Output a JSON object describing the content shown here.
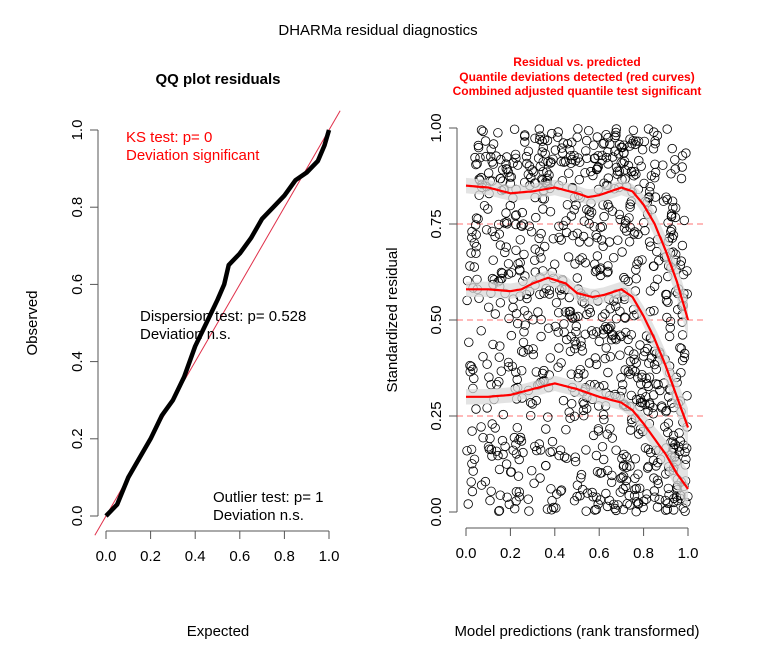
{
  "main_title": "DHARMa residual diagnostics",
  "chart_data": [
    {
      "type": "line",
      "title": "QQ plot residuals",
      "xlabel": "Expected",
      "ylabel": "Observed",
      "xlim": [
        0,
        1
      ],
      "ylim": [
        0,
        1
      ],
      "xticks": [
        "0.0",
        "0.2",
        "0.4",
        "0.6",
        "0.8",
        "1.0"
      ],
      "yticks": [
        "0.0",
        "0.2",
        "0.4",
        "0.6",
        "0.8",
        "1.0"
      ],
      "series": [
        {
          "name": "residual quantiles",
          "color": "#000000",
          "x": [
            0,
            0.05,
            0.1,
            0.15,
            0.2,
            0.25,
            0.3,
            0.35,
            0.4,
            0.45,
            0.5,
            0.53,
            0.55,
            0.6,
            0.65,
            0.7,
            0.75,
            0.8,
            0.85,
            0.9,
            0.95,
            0.98,
            1
          ],
          "y": [
            0,
            0.03,
            0.1,
            0.15,
            0.2,
            0.26,
            0.3,
            0.36,
            0.44,
            0.5,
            0.56,
            0.6,
            0.65,
            0.68,
            0.72,
            0.77,
            0.8,
            0.83,
            0.87,
            0.89,
            0.92,
            0.96,
            1
          ]
        },
        {
          "name": "1:1 line",
          "color": "#e0304a",
          "x": [
            -0.05,
            1.05
          ],
          "y": [
            -0.05,
            1.05
          ]
        }
      ],
      "annotations": [
        {
          "lines": [
            "KS test: p= 0",
            "Deviation  significant"
          ],
          "color": "#ff0000"
        },
        {
          "lines": [
            "Dispersion test: p= 0.528",
            "Deviation  n.s."
          ],
          "color": "#000000"
        },
        {
          "lines": [
            "Outlier test: p= 1",
            "Deviation  n.s."
          ],
          "color": "#000000"
        }
      ]
    },
    {
      "type": "scatter",
      "title": [
        "Residual vs. predicted",
        "Quantile deviations detected (red curves)",
        "Combined adjusted quantile test significant"
      ],
      "title_color": "#ff0000",
      "xlabel": "Model predictions (rank transformed)",
      "ylabel": "Standardized residual",
      "xlim": [
        0,
        1
      ],
      "ylim": [
        0,
        1
      ],
      "xticks": [
        "0.0",
        "0.2",
        "0.4",
        "0.6",
        "0.8",
        "1.0"
      ],
      "yticks": [
        "0.00",
        "0.25",
        "0.50",
        "0.75",
        "1.00"
      ],
      "reference_lines": [
        0.25,
        0.5,
        0.75
      ],
      "n_points": 1000,
      "quantile_curves": [
        {
          "quantile": 0.75,
          "x": [
            0,
            0.1,
            0.2,
            0.3,
            0.4,
            0.5,
            0.55,
            0.6,
            0.7,
            0.75,
            0.8,
            0.85,
            0.9,
            0.95,
            1
          ],
          "y": [
            0.85,
            0.845,
            0.83,
            0.835,
            0.845,
            0.83,
            0.82,
            0.825,
            0.845,
            0.835,
            0.8,
            0.75,
            0.68,
            0.6,
            0.5
          ]
        },
        {
          "quantile": 0.5,
          "x": [
            0,
            0.1,
            0.2,
            0.25,
            0.3,
            0.37,
            0.45,
            0.5,
            0.57,
            0.62,
            0.7,
            0.75,
            0.8,
            0.85,
            0.9,
            0.95,
            1
          ],
          "y": [
            0.58,
            0.58,
            0.575,
            0.58,
            0.595,
            0.61,
            0.595,
            0.57,
            0.56,
            0.565,
            0.58,
            0.56,
            0.51,
            0.45,
            0.38,
            0.3,
            0.22
          ]
        },
        {
          "quantile": 0.25,
          "x": [
            0,
            0.1,
            0.2,
            0.3,
            0.4,
            0.5,
            0.6,
            0.7,
            0.75,
            0.8,
            0.85,
            0.9,
            0.95,
            1
          ],
          "y": [
            0.3,
            0.3,
            0.305,
            0.32,
            0.335,
            0.32,
            0.3,
            0.285,
            0.265,
            0.23,
            0.19,
            0.15,
            0.1,
            0.06
          ]
        }
      ],
      "curve_color": "#ff0000",
      "band_color": "#d9d9d9"
    }
  ]
}
